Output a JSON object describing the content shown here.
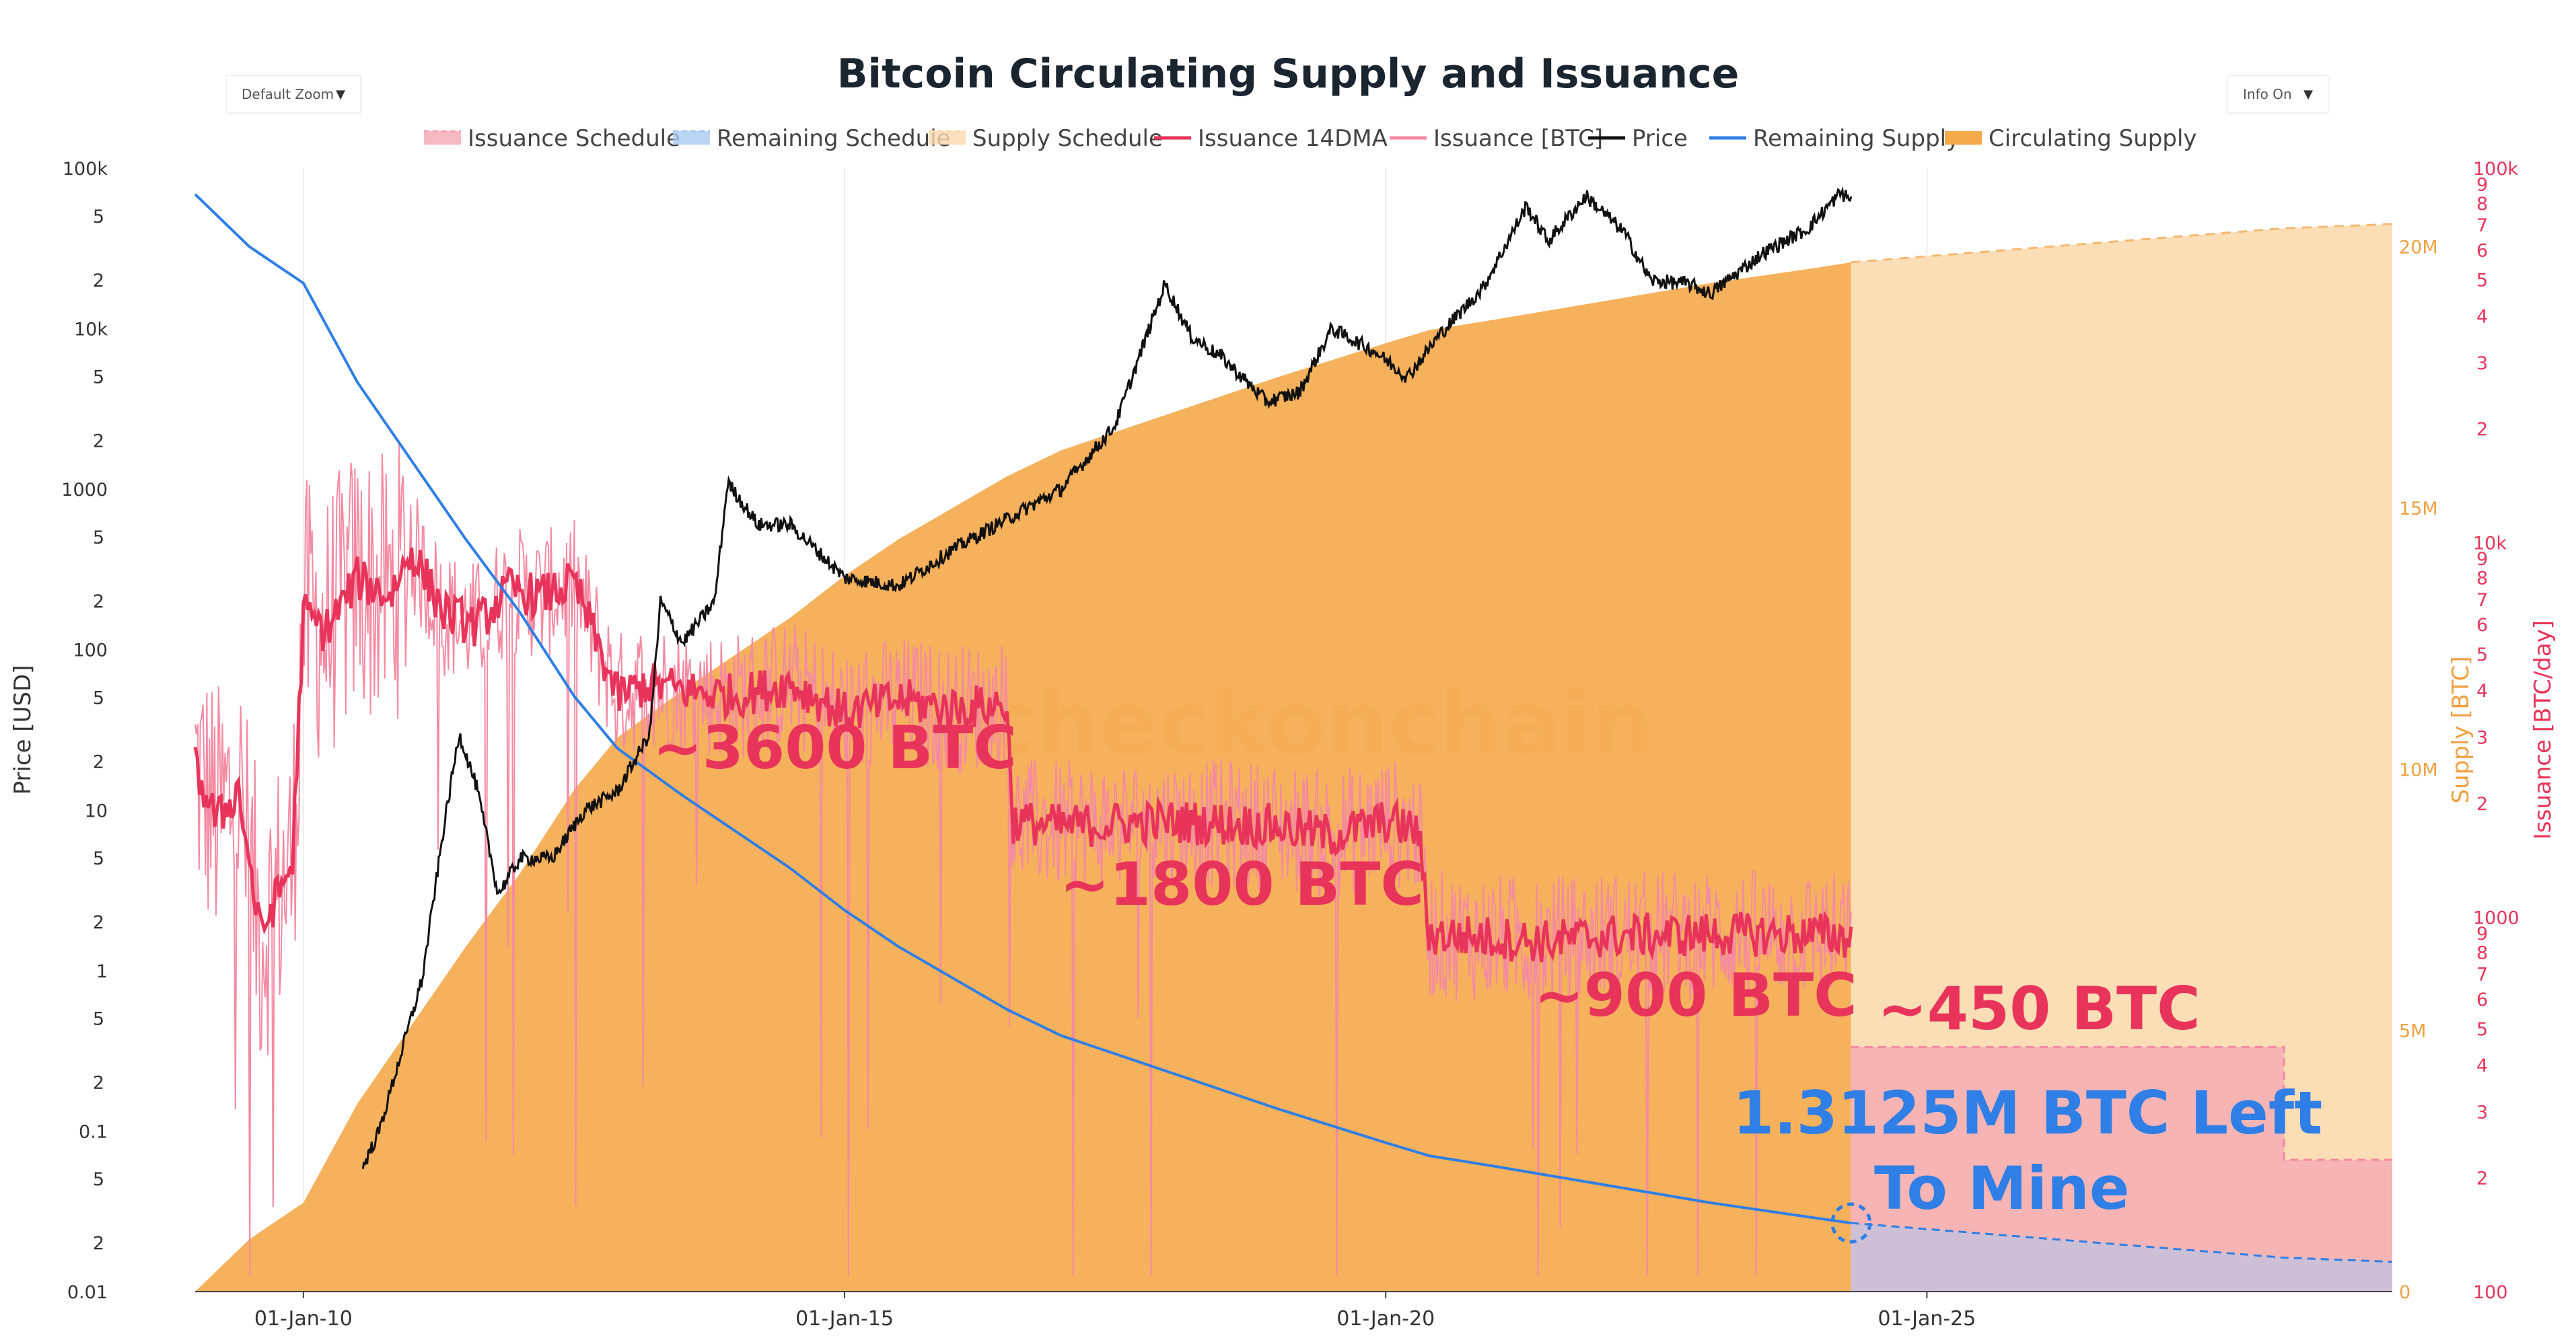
{
  "controls": {
    "zoom": {
      "label": "Default Zoom"
    },
    "info": {
      "label": "Info On"
    }
  },
  "chart_data": {
    "type": "line",
    "title": "Bitcoin Circulating Supply and Issuance",
    "watermark": "checkonchain",
    "legend": [
      {
        "name": "Issuance Schedule",
        "color": "#f4a6b4",
        "style": "dash-fill"
      },
      {
        "name": "Remaining Schedule",
        "color": "#a9c9f0",
        "style": "dash-fill"
      },
      {
        "name": "Supply Schedule",
        "color": "#fbd9ae",
        "style": "dash-fill"
      },
      {
        "name": "Issuance 14DMA",
        "color": "#e8345a",
        "style": "line"
      },
      {
        "name": "Issuance [BTC]",
        "color": "#f48aa2",
        "style": "line"
      },
      {
        "name": "Price",
        "color": "#111111",
        "style": "line"
      },
      {
        "name": "Remaining Supply",
        "color": "#2f7fe6",
        "style": "line"
      },
      {
        "name": "Circulating Supply",
        "color": "#f5a94a",
        "style": "fill"
      }
    ],
    "x_axis": {
      "range": [
        2009.0,
        2029.3
      ],
      "ticks": [
        {
          "label": "01-Jan-10",
          "value": 2010
        },
        {
          "label": "01-Jan-15",
          "value": 2015
        },
        {
          "label": "01-Jan-20",
          "value": 2020
        },
        {
          "label": "01-Jan-25",
          "value": 2025
        }
      ]
    },
    "price_axis": {
      "title": "Price [USD]",
      "scale": "log",
      "range": [
        0.01,
        100000
      ],
      "major": [
        {
          "label": "0.01",
          "value": 0.01
        },
        {
          "label": "0.1",
          "value": 0.1
        },
        {
          "label": "1",
          "value": 1
        },
        {
          "label": "10",
          "value": 10
        },
        {
          "label": "100",
          "value": 100
        },
        {
          "label": "1000",
          "value": 1000
        },
        {
          "label": "10k",
          "value": 10000
        },
        {
          "label": "100k",
          "value": 100000
        }
      ],
      "minor_labels": [
        "2",
        "5"
      ]
    },
    "supply_axis": {
      "title": "Supply [BTC]",
      "range": [
        0,
        21500000
      ],
      "ticks": [
        {
          "label": "0",
          "value": 0
        },
        {
          "label": "5M",
          "value": 5000000
        },
        {
          "label": "10M",
          "value": 10000000
        },
        {
          "label": "15M",
          "value": 15000000
        },
        {
          "label": "20M",
          "value": 20000000
        }
      ]
    },
    "issuance_axis": {
      "title": "Issuance [BTC/day]",
      "scale": "log",
      "range": [
        100,
        100000
      ],
      "major": [
        {
          "label": "100",
          "value": 100
        },
        {
          "label": "1000",
          "value": 1000
        },
        {
          "label": "10k",
          "value": 10000
        },
        {
          "label": "100k",
          "value": 100000
        }
      ],
      "minor_labels": [
        "2",
        "3",
        "4",
        "5",
        "6",
        "7",
        "8",
        "9"
      ]
    },
    "series": {
      "circulating_supply": {
        "name": "Circulating Supply",
        "x": [
          2009.0,
          2009.5,
          2010.0,
          2010.5,
          2011.0,
          2011.5,
          2012.0,
          2012.5,
          2012.9,
          2013.5,
          2014.0,
          2014.5,
          2015.0,
          2015.5,
          2016.0,
          2016.5,
          2017.0,
          2018.0,
          2019.0,
          2020.0,
          2020.4,
          2021.0,
          2022.0,
          2023.0,
          2024.0,
          2024.3
        ],
        "values": [
          0,
          1000000,
          1700000,
          3600000,
          5100000,
          6600000,
          8000000,
          9600000,
          10600000,
          11500000,
          12200000,
          12900000,
          13700000,
          14400000,
          15000000,
          15600000,
          16100000,
          16800000,
          17500000,
          18150000,
          18400000,
          18600000,
          18950000,
          19300000,
          19600000,
          19700000
        ]
      },
      "supply_schedule": {
        "name": "Supply Schedule",
        "x": [
          2024.3,
          2028.3,
          2029.3
        ],
        "values": [
          19700000,
          20350000,
          20430000
        ]
      },
      "remaining_supply": {
        "name": "Remaining Supply",
        "x": [
          2009.0,
          2009.5,
          2010.0,
          2010.5,
          2011.0,
          2011.5,
          2012.0,
          2012.5,
          2012.9,
          2013.5,
          2014.0,
          2014.5,
          2015.0,
          2015.5,
          2016.0,
          2016.5,
          2017.0,
          2018.0,
          2019.0,
          2020.0,
          2020.4,
          2021.0,
          2022.0,
          2023.0,
          2024.0,
          2024.3
        ],
        "values": [
          21000000,
          20000000,
          19300000,
          17400000,
          15900000,
          14400000,
          13000000,
          11400000,
          10400000,
          9500000,
          8800000,
          8100000,
          7300000,
          6600000,
          6000000,
          5400000,
          4900000,
          4200000,
          3500000,
          2850000,
          2600000,
          2400000,
          2050000,
          1700000,
          1400000,
          1312500
        ]
      },
      "remaining_schedule": {
        "name": "Remaining Schedule",
        "x": [
          2024.3,
          2028.3,
          2029.3
        ],
        "values": [
          1312500,
          650000,
          570000
        ]
      },
      "issuance_14dma": {
        "name": "Issuance 14DMA",
        "x": [
          2009.0,
          2009.2,
          2009.4,
          2009.6,
          2009.9,
          2010.0,
          2010.2,
          2010.5,
          2010.8,
          2011.0,
          2011.3,
          2011.6,
          2011.9,
          2012.2,
          2012.5,
          2012.9,
          2013.2,
          2013.6,
          2014.0,
          2014.5,
          2015.0,
          2015.5,
          2016.0,
          2016.5,
          2016.55,
          2017.0,
          2018.0,
          2019.0,
          2019.5,
          2020.0,
          2020.3,
          2020.4,
          2021.0,
          2021.5,
          2022.0,
          2023.0,
          2024.0,
          2024.3
        ],
        "values": [
          2500,
          1800,
          2200,
          900,
          1400,
          6500,
          5800,
          8000,
          7200,
          9500,
          6500,
          6000,
          7500,
          7200,
          7800,
          3900,
          4200,
          4000,
          3900,
          4200,
          3500,
          3800,
          3600,
          3700,
          1800,
          1750,
          1800,
          1750,
          1650,
          1800,
          1700,
          900,
          880,
          860,
          890,
          900,
          900,
          880
        ]
      },
      "issuance_schedule": {
        "name": "Issuance Schedule",
        "x": [
          2024.3,
          2028.3,
          2028.3,
          2029.3
        ],
        "values": [
          450,
          450,
          225,
          225
        ]
      },
      "price": {
        "name": "Price",
        "x": [
          2010.55,
          2010.7,
          2010.9,
          2011.1,
          2011.3,
          2011.44,
          2011.6,
          2011.8,
          2012.0,
          2012.3,
          2012.6,
          2012.9,
          2013.2,
          2013.3,
          2013.5,
          2013.8,
          2013.92,
          2014.2,
          2014.5,
          2014.8,
          2015.0,
          2015.5,
          2016.0,
          2016.5,
          2017.0,
          2017.5,
          2017.96,
          2018.2,
          2018.5,
          2018.9,
          2019.2,
          2019.5,
          2019.9,
          2020.2,
          2020.5,
          2020.9,
          2021.3,
          2021.5,
          2021.85,
          2022.2,
          2022.45,
          2022.8,
          2023.0,
          2023.5,
          2023.9,
          2024.2,
          2024.3
        ],
        "values": [
          0.06,
          0.1,
          0.3,
          0.9,
          8,
          30,
          14,
          3,
          5,
          5,
          10,
          13,
          30,
          200,
          110,
          200,
          1100,
          600,
          600,
          380,
          280,
          250,
          420,
          650,
          1000,
          2500,
          19000,
          9000,
          6500,
          3500,
          4000,
          10000,
          7200,
          5000,
          9200,
          18000,
          58000,
          35000,
          67000,
          40000,
          20000,
          19000,
          16500,
          30000,
          42000,
          70000,
          64000
        ]
      }
    },
    "annotations": [
      {
        "text": "~3600 BTC",
        "color": "#e8345a"
      },
      {
        "text": "~1800 BTC",
        "color": "#e8345a"
      },
      {
        "text": "~900 BTC",
        "color": "#e8345a"
      },
      {
        "text": "~450 BTC",
        "color": "#e8345a"
      },
      {
        "text": "1.3125M BTC Left",
        "color": "#2f7fe6"
      },
      {
        "text": "To Mine",
        "color": "#2f7fe6"
      }
    ]
  }
}
